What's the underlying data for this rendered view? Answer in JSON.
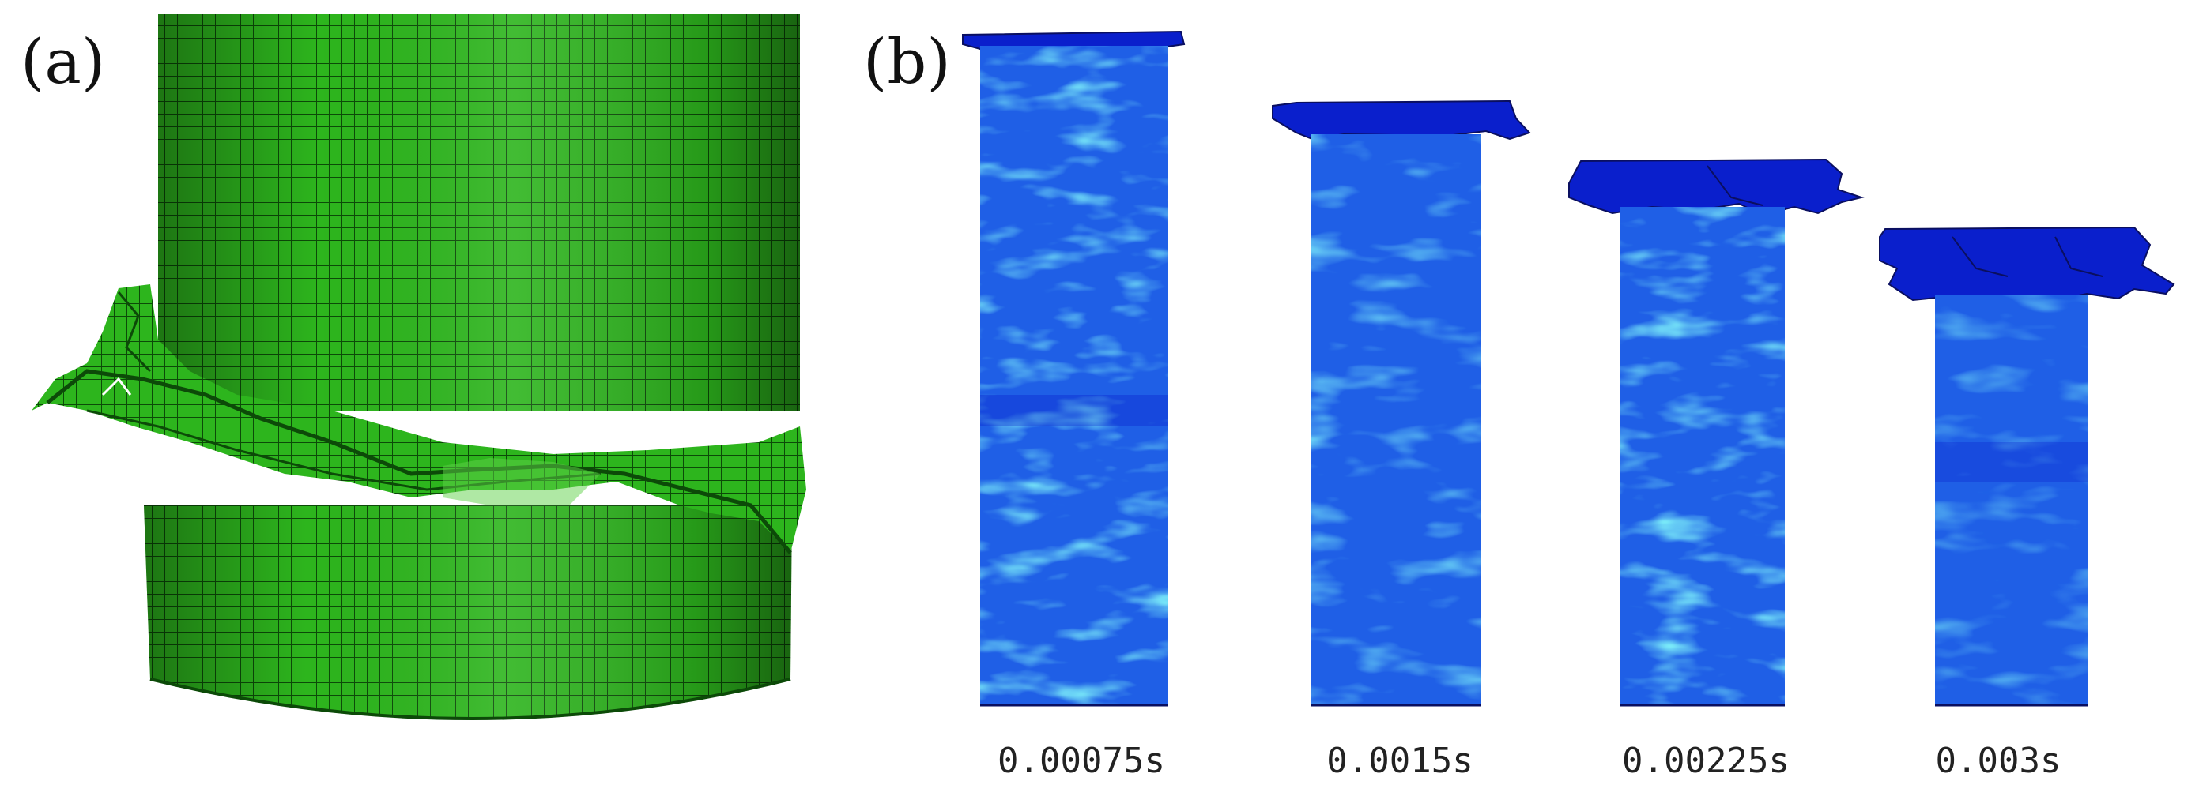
{
  "panels": {
    "a": {
      "label": "(a)",
      "mesh_color": "#2db51d",
      "mesh_line": "#0c4a08"
    },
    "b": {
      "label": "(b)",
      "colors": {
        "dark": "#0a1fcc",
        "mid": "#1f5fe6",
        "light": "#37c6e0"
      },
      "frames": [
        {
          "time": "0.00075s"
        },
        {
          "time": "0.0015s"
        },
        {
          "time": "0.00225s"
        },
        {
          "time": "0.003s"
        }
      ]
    }
  }
}
